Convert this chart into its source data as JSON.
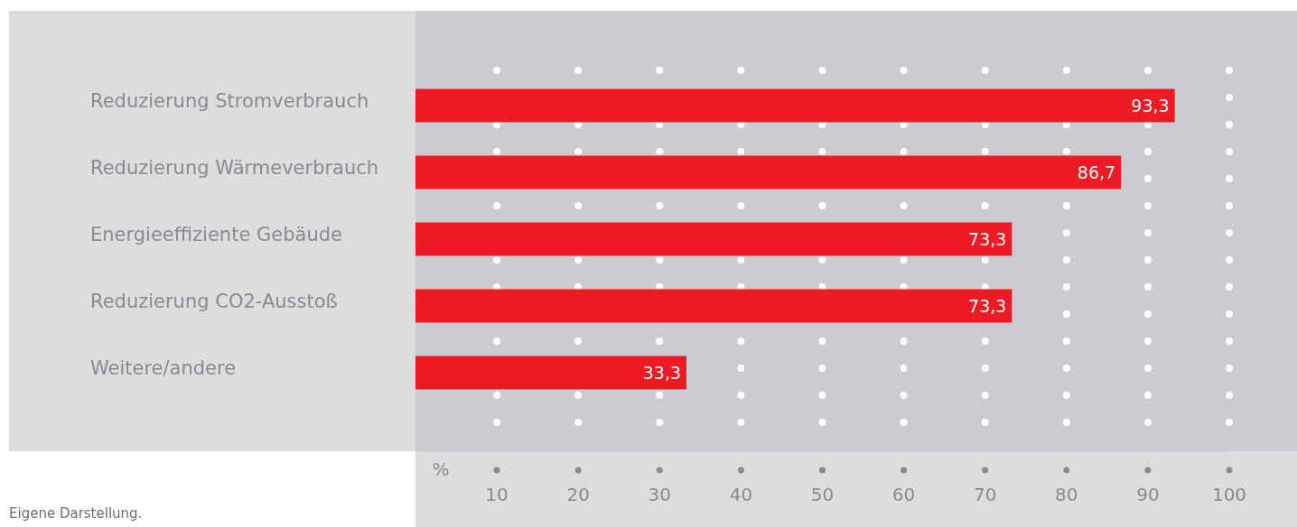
{
  "chart_data": {
    "type": "bar",
    "orientation": "horizontal",
    "categories": [
      "Reduzierung Stromverbrauch",
      "Reduzierung Wärmeverbrauch",
      "Energieeffiziente Gebäude",
      "Reduzierung CO2-Ausstoß",
      "Weitere/andere"
    ],
    "values": [
      93.3,
      86.7,
      73.3,
      73.3,
      33.3
    ],
    "color": "#ed1c24",
    "value_labels": [
      "93,3",
      "86,7",
      "73,3",
      "73,3",
      "33,3"
    ],
    "xlim": [
      0,
      100
    ],
    "xticks": [
      10,
      20,
      30,
      40,
      50,
      60,
      70,
      80,
      90,
      100
    ],
    "xlabel": "%",
    "grid": "x",
    "annotations": [
      "Eigene Darstellung."
    ]
  }
}
